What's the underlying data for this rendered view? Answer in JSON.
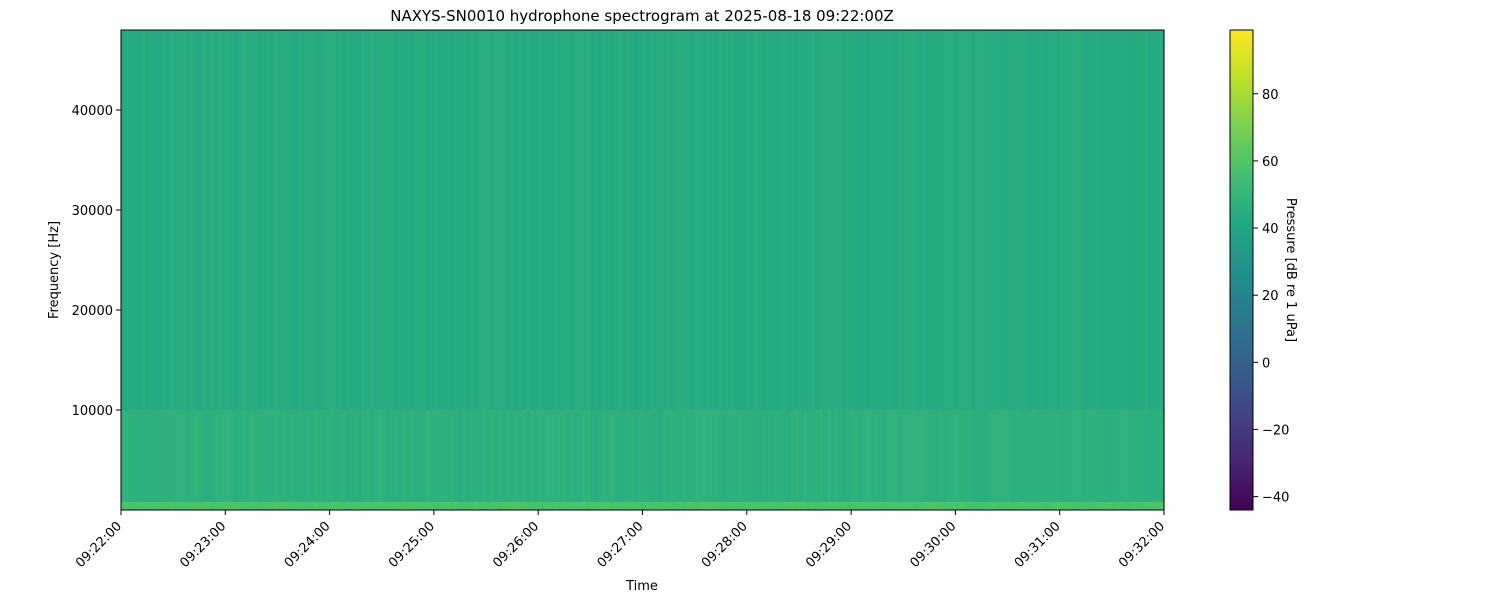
{
  "chart_data": {
    "type": "heatmap",
    "title": "NAXYS-SN0010 hydrophone spectrogram at 2025-08-18 09:22:00Z",
    "xlabel": "Time",
    "ylabel": "Frequency [Hz]",
    "xlim": [
      "09:22:00",
      "09:32:00"
    ],
    "ylim": [
      0,
      48000
    ],
    "x_ticks": [
      "09:22:00",
      "09:23:00",
      "09:24:00",
      "09:25:00",
      "09:26:00",
      "09:27:00",
      "09:28:00",
      "09:29:00",
      "09:30:00",
      "09:31:00",
      "09:32:00"
    ],
    "y_ticks": [
      10000,
      20000,
      30000,
      40000
    ],
    "colormap": "viridis",
    "colorbar": {
      "label": "Pressure [dB re 1 uPa]",
      "range": [
        -44,
        99
      ],
      "ticks": [
        -40,
        -20,
        0,
        20,
        40,
        60,
        80
      ]
    },
    "approx_levels": [
      {
        "freq_range": [
          0,
          800
        ],
        "db": 58
      },
      {
        "freq_range": [
          800,
          10000
        ],
        "db": 47
      },
      {
        "freq_range": [
          10000,
          48000
        ],
        "db": 44
      }
    ],
    "grid": false
  }
}
